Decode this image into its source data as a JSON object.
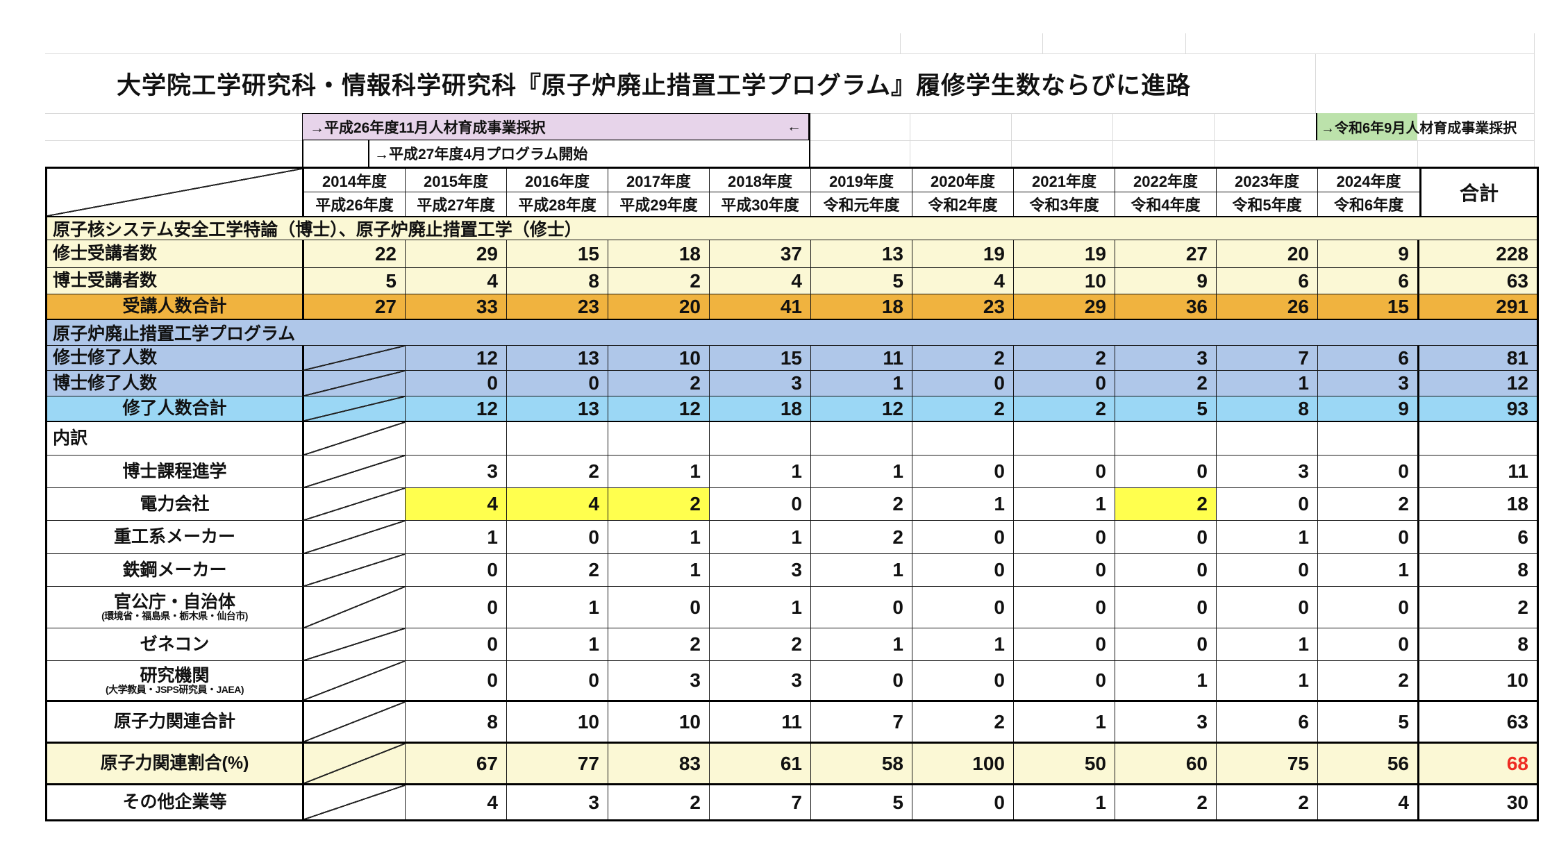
{
  "title": "大学院工学研究科・情報科学研究科『原子炉廃止措置工学プログラム』履修学生数ならびに進路",
  "annotations": {
    "grant2014": "→平成26年度11月人材育成事業採択",
    "grant2014_end": "←",
    "program_start": "→平成27年度4月プログラム開始",
    "grant2024": "→令和6年9月人材育成事業採択"
  },
  "colors": {
    "cream": "#FBF8D5",
    "orange": "#F0B33F",
    "periwinkle": "#AFC7E9",
    "skyblue": "#9BD7F5",
    "highlight_yellow": "#FFFF4E",
    "annotation_pink": "#E7D4EA",
    "annotation_green": "#BCE2AB",
    "alert_red": "#EE2B22"
  },
  "table": {
    "years": [
      "2014年度",
      "2015年度",
      "2016年度",
      "2017年度",
      "2018年度",
      "2019年度",
      "2020年度",
      "2021年度",
      "2022年度",
      "2023年度",
      "2024年度"
    ],
    "eras": [
      "平成26年度",
      "平成27年度",
      "平成28年度",
      "平成29年度",
      "平成30年度",
      "令和元年度",
      "令和2年度",
      "令和3年度",
      "令和4年度",
      "令和5年度",
      "令和6年度"
    ],
    "total_label": "合計",
    "rows": [
      {
        "type": "band",
        "label": "原子核システム安全工学特論（博士）、原子炉廃止措置工学（修士）",
        "bg": "cream"
      },
      {
        "type": "data",
        "label": "修士受講者数",
        "align": "left",
        "bg": "cream",
        "values": [
          "22",
          "29",
          "15",
          "18",
          "37",
          "13",
          "19",
          "19",
          "27",
          "20",
          "9"
        ],
        "total": "228"
      },
      {
        "type": "data",
        "label": "博士受講者数",
        "align": "left",
        "bg": "cream",
        "values": [
          "5",
          "4",
          "8",
          "2",
          "4",
          "5",
          "4",
          "10",
          "9",
          "6",
          "6"
        ],
        "total": "63"
      },
      {
        "type": "data",
        "label": "受講人数合計",
        "align": "center",
        "bg": "orange",
        "values": [
          "27",
          "33",
          "23",
          "20",
          "41",
          "18",
          "23",
          "29",
          "36",
          "26",
          "15"
        ],
        "total": "291"
      },
      {
        "type": "band",
        "label": "原子炉廃止措置工学プログラム",
        "bg": "periwinkle"
      },
      {
        "type": "data",
        "label": "修士修了人数",
        "align": "left",
        "bg": "periwinkle",
        "diagonal": true,
        "values": [
          null,
          "12",
          "13",
          "10",
          "15",
          "11",
          "2",
          "2",
          "3",
          "7",
          "6"
        ],
        "total": "81"
      },
      {
        "type": "data",
        "label": "博士修了人数",
        "align": "left",
        "bg": "periwinkle",
        "diagonal": true,
        "values": [
          null,
          "0",
          "0",
          "2",
          "3",
          "1",
          "0",
          "0",
          "2",
          "1",
          "3"
        ],
        "total": "12"
      },
      {
        "type": "data",
        "label": "修了人数合計",
        "align": "center",
        "bg": "skyblue",
        "diagonal": true,
        "values": [
          null,
          "12",
          "13",
          "12",
          "18",
          "12",
          "2",
          "2",
          "5",
          "8",
          "9"
        ],
        "total": "93"
      },
      {
        "type": "data",
        "label": "内訳",
        "align": "left",
        "bg": "white",
        "diagonal": true,
        "values": [
          null,
          "",
          "",
          "",
          "",
          "",
          "",
          "",
          "",
          "",
          ""
        ],
        "total": ""
      },
      {
        "type": "data",
        "label": "博士課程進学",
        "align": "center",
        "bg": "white",
        "diagonal": true,
        "values": [
          null,
          "3",
          "2",
          "1",
          "1",
          "1",
          "0",
          "0",
          "0",
          "3",
          "0"
        ],
        "total": "11"
      },
      {
        "type": "data",
        "label": "電力会社",
        "align": "center",
        "bg": "white",
        "diagonal": true,
        "highlight": [
          1,
          2,
          3,
          8
        ],
        "values": [
          null,
          "4",
          "4",
          "2",
          "0",
          "2",
          "1",
          "1",
          "2",
          "0",
          "2"
        ],
        "total": "18"
      },
      {
        "type": "data",
        "label": "重工系メーカー",
        "align": "center",
        "bg": "white",
        "diagonal": true,
        "values": [
          null,
          "1",
          "0",
          "1",
          "1",
          "2",
          "0",
          "0",
          "0",
          "1",
          "0"
        ],
        "total": "6"
      },
      {
        "type": "data",
        "label": "鉄鋼メーカー",
        "align": "center",
        "bg": "white",
        "diagonal": true,
        "values": [
          null,
          "0",
          "2",
          "1",
          "3",
          "1",
          "0",
          "0",
          "0",
          "0",
          "1"
        ],
        "total": "8"
      },
      {
        "type": "data",
        "label": "官公庁・自治体",
        "sublabel": "(環境省・福島県・栃木県・仙台市)",
        "align": "center",
        "bg": "white",
        "diagonal": true,
        "values": [
          null,
          "0",
          "1",
          "0",
          "1",
          "0",
          "0",
          "0",
          "0",
          "0",
          "0"
        ],
        "total": "2"
      },
      {
        "type": "data",
        "label": "ゼネコン",
        "align": "center",
        "bg": "white",
        "diagonal": true,
        "values": [
          null,
          "0",
          "1",
          "2",
          "2",
          "1",
          "1",
          "0",
          "0",
          "1",
          "0"
        ],
        "total": "8"
      },
      {
        "type": "data",
        "label": "研究機関",
        "sublabel": "(大学教員・JSPS研究員・JAEA)",
        "align": "center",
        "bg": "white",
        "diagonal": true,
        "values": [
          null,
          "0",
          "0",
          "3",
          "3",
          "0",
          "0",
          "0",
          "1",
          "1",
          "2"
        ],
        "total": "10"
      },
      {
        "type": "data",
        "label": "原子力関連合計",
        "align": "center",
        "bg": "white",
        "diagonal": true,
        "values": [
          null,
          "8",
          "10",
          "10",
          "11",
          "7",
          "2",
          "1",
          "3",
          "6",
          "5"
        ],
        "total": "63"
      },
      {
        "type": "data",
        "label": "原子力関連割合(%)",
        "align": "center",
        "bg": "cream",
        "diagonal": true,
        "total_red": true,
        "values": [
          null,
          "67",
          "77",
          "83",
          "61",
          "58",
          "100",
          "50",
          "60",
          "75",
          "56"
        ],
        "total": "68"
      },
      {
        "type": "data",
        "label": "その他企業等",
        "align": "center",
        "bg": "white",
        "diagonal": true,
        "values": [
          null,
          "4",
          "3",
          "2",
          "7",
          "5",
          "0",
          "1",
          "2",
          "2",
          "4"
        ],
        "total": "30"
      }
    ]
  }
}
